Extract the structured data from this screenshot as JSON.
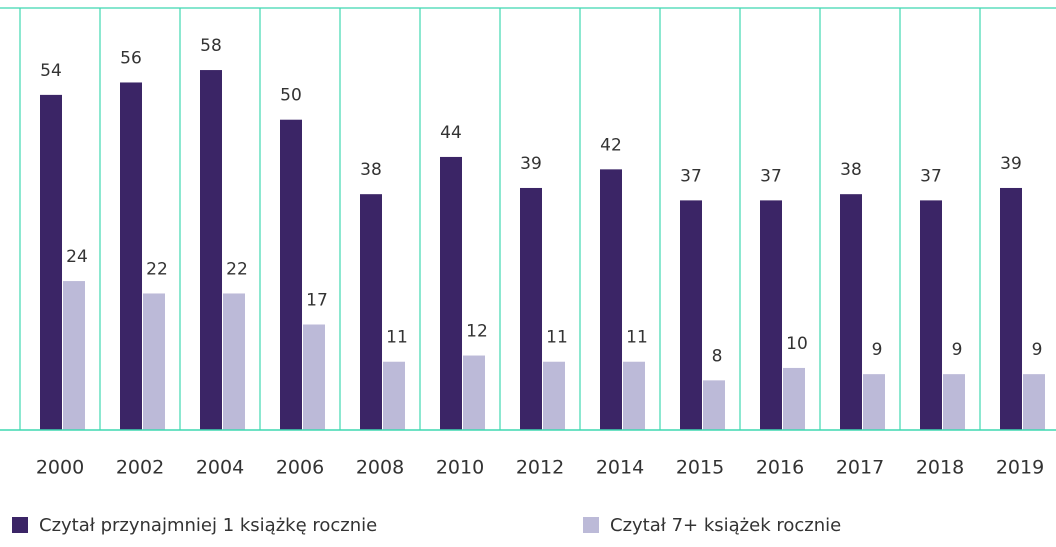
{
  "chart_data": {
    "type": "bar",
    "categories": [
      "2000",
      "2002",
      "2004",
      "2006",
      "2008",
      "2010",
      "2012",
      "2014",
      "2015",
      "2016",
      "2017",
      "2018",
      "2019"
    ],
    "series": [
      {
        "name": "Czytał przynajmniej 1 książkę rocznie",
        "color": "#3b2566",
        "values": [
          54,
          56,
          58,
          50,
          38,
          44,
          39,
          42,
          37,
          37,
          38,
          37,
          39
        ]
      },
      {
        "name": "Czytał 7+ książek rocznie",
        "color": "#bcbad8",
        "values": [
          24,
          22,
          22,
          17,
          11,
          12,
          11,
          11,
          8,
          10,
          9,
          9,
          9
        ]
      }
    ],
    "ylim": [
      0,
      68
    ],
    "grid_color": "#3fd8b0"
  }
}
